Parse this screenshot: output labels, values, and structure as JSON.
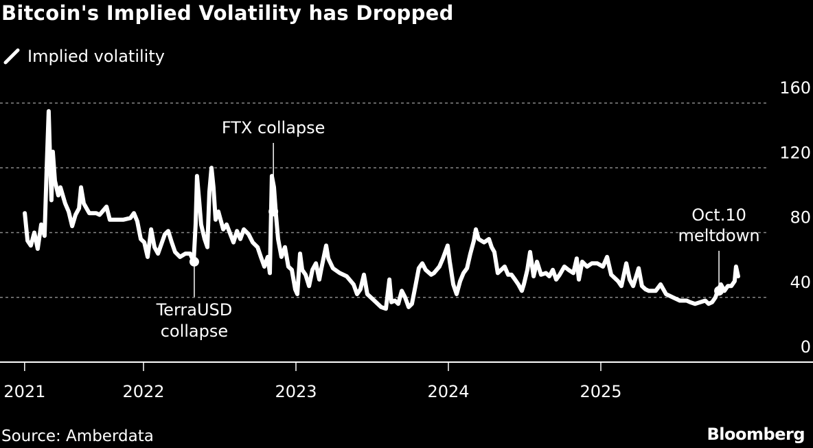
{
  "title": "Bitcoin's Implied Volatility has Dropped",
  "legend": [
    {
      "label": "Implied volatility",
      "icon": "slash-line-icon",
      "color": "#ffffff"
    }
  ],
  "source": "Source: Amberdata",
  "logo": "Bloomberg",
  "colors": {
    "background": "#000000",
    "line": "#ffffff",
    "grid": "#888888"
  },
  "chart_data": {
    "type": "line",
    "title": "Bitcoin's Implied Volatility has Dropped",
    "xlabel": "",
    "ylabel": "",
    "x_unit": "year (decimal)",
    "xlim": [
      2021.22,
      2025.95
    ],
    "ylim": [
      0,
      160
    ],
    "y_ticks": [
      0,
      40,
      80,
      120,
      160
    ],
    "x_ticks": [
      {
        "label": "2021",
        "value": 2021
      },
      {
        "label": "2022",
        "value": 2022
      },
      {
        "label": "2023",
        "value": 2023
      },
      {
        "label": "2024",
        "value": 2024
      },
      {
        "label": "2025",
        "value": 2025
      }
    ],
    "grid": "horizontal dashed",
    "y_axis_side": "right",
    "legend_placement": "top-left",
    "series": [
      {
        "name": "Implied volatility",
        "points": [
          [
            2021.221,
            92
          ],
          [
            2021.239,
            75
          ],
          [
            2021.261,
            72
          ],
          [
            2021.284,
            80
          ],
          [
            2021.306,
            70
          ],
          [
            2021.329,
            85
          ],
          [
            2021.351,
            78
          ],
          [
            2021.365,
            120
          ],
          [
            2021.378,
            155
          ],
          [
            2021.387,
            125
          ],
          [
            2021.396,
            100
          ],
          [
            2021.405,
            130
          ],
          [
            2021.419,
            112
          ],
          [
            2021.441,
            103
          ],
          [
            2021.455,
            108
          ],
          [
            2021.486,
            98
          ],
          [
            2021.509,
            93
          ],
          [
            2021.532,
            84
          ],
          [
            2021.554,
            91
          ],
          [
            2021.577,
            95
          ],
          [
            2021.59,
            108
          ],
          [
            2021.608,
            98
          ],
          [
            2021.644,
            92
          ],
          [
            2021.689,
            92
          ],
          [
            2021.712,
            91
          ],
          [
            2021.757,
            96
          ],
          [
            2021.779,
            88
          ],
          [
            2021.824,
            88
          ],
          [
            2021.869,
            88
          ],
          [
            2021.914,
            89
          ],
          [
            2021.937,
            92
          ],
          [
            2021.959,
            87
          ],
          [
            2021.982,
            76
          ],
          [
            2022.005,
            74
          ],
          [
            2022.027,
            65
          ],
          [
            2022.05,
            82
          ],
          [
            2022.072,
            71
          ],
          [
            2022.095,
            67
          ],
          [
            2022.14,
            79
          ],
          [
            2022.162,
            81
          ],
          [
            2022.185,
            74
          ],
          [
            2022.207,
            68
          ],
          [
            2022.239,
            65
          ],
          [
            2022.275,
            67
          ],
          [
            2022.306,
            67
          ],
          [
            2022.329,
            62
          ],
          [
            2022.342,
            85
          ],
          [
            2022.351,
            115
          ],
          [
            2022.365,
            100
          ],
          [
            2022.378,
            85
          ],
          [
            2022.401,
            76
          ],
          [
            2022.419,
            71
          ],
          [
            2022.432,
            105
          ],
          [
            2022.446,
            120
          ],
          [
            2022.459,
            108
          ],
          [
            2022.473,
            88
          ],
          [
            2022.491,
            93
          ],
          [
            2022.523,
            82
          ],
          [
            2022.545,
            85
          ],
          [
            2022.59,
            74
          ],
          [
            2022.613,
            81
          ],
          [
            2022.635,
            76
          ],
          [
            2022.658,
            82
          ],
          [
            2022.689,
            79
          ],
          [
            2022.716,
            74
          ],
          [
            2022.748,
            71
          ],
          [
            2022.77,
            65
          ],
          [
            2022.793,
            59
          ],
          [
            2022.815,
            65
          ],
          [
            2022.829,
            55
          ],
          [
            2022.842,
            115
          ],
          [
            2022.856,
            108
          ],
          [
            2022.869,
            91
          ],
          [
            2022.883,
            76
          ],
          [
            2022.905,
            65
          ],
          [
            2022.928,
            71
          ],
          [
            2022.95,
            59
          ],
          [
            2022.973,
            57
          ],
          [
            2022.995,
            45
          ],
          [
            2023.009,
            42
          ],
          [
            2023.027,
            67
          ],
          [
            2023.041,
            57
          ],
          [
            2023.063,
            54
          ],
          [
            2023.086,
            47
          ],
          [
            2023.108,
            57
          ],
          [
            2023.131,
            61
          ],
          [
            2023.153,
            51
          ],
          [
            2023.167,
            58
          ],
          [
            2023.198,
            72
          ],
          [
            2023.212,
            64
          ],
          [
            2023.243,
            58
          ],
          [
            2023.288,
            55
          ],
          [
            2023.333,
            53
          ],
          [
            2023.378,
            48
          ],
          [
            2023.401,
            42
          ],
          [
            2023.423,
            45
          ],
          [
            2023.446,
            54
          ],
          [
            2023.468,
            42
          ],
          [
            2023.514,
            38
          ],
          [
            2023.559,
            34
          ],
          [
            2023.59,
            33
          ],
          [
            2023.613,
            51
          ],
          [
            2023.626,
            37
          ],
          [
            2023.649,
            38
          ],
          [
            2023.671,
            36
          ],
          [
            2023.694,
            44
          ],
          [
            2023.716,
            40
          ],
          [
            2023.739,
            34
          ],
          [
            2023.761,
            36
          ],
          [
            2023.784,
            47
          ],
          [
            2023.806,
            58
          ],
          [
            2023.829,
            61
          ],
          [
            2023.851,
            57
          ],
          [
            2023.887,
            54
          ],
          [
            2023.905,
            55
          ],
          [
            2023.941,
            59
          ],
          [
            2023.964,
            64
          ],
          [
            2023.995,
            72
          ],
          [
            2024.009,
            62
          ],
          [
            2024.032,
            48
          ],
          [
            2024.054,
            42
          ],
          [
            2024.077,
            50
          ],
          [
            2024.099,
            55
          ],
          [
            2024.122,
            58
          ],
          [
            2024.144,
            67
          ],
          [
            2024.167,
            75
          ],
          [
            2024.18,
            82
          ],
          [
            2024.198,
            76
          ],
          [
            2024.234,
            74
          ],
          [
            2024.266,
            76
          ],
          [
            2024.284,
            71
          ],
          [
            2024.302,
            68
          ],
          [
            2024.324,
            55
          ],
          [
            2024.347,
            57
          ],
          [
            2024.369,
            59
          ],
          [
            2024.392,
            54
          ],
          [
            2024.414,
            54
          ],
          [
            2024.437,
            51
          ],
          [
            2024.459,
            48
          ],
          [
            2024.482,
            44
          ],
          [
            2024.495,
            48
          ],
          [
            2024.518,
            57
          ],
          [
            2024.536,
            68
          ],
          [
            2024.559,
            53
          ],
          [
            2024.581,
            62
          ],
          [
            2024.608,
            54
          ],
          [
            2024.64,
            55
          ],
          [
            2024.662,
            53
          ],
          [
            2024.685,
            57
          ],
          [
            2024.707,
            51
          ],
          [
            2024.73,
            54
          ],
          [
            2024.761,
            59
          ],
          [
            2024.788,
            57
          ],
          [
            2024.82,
            55
          ],
          [
            2024.842,
            64
          ],
          [
            2024.856,
            51
          ],
          [
            2024.878,
            62
          ],
          [
            2024.91,
            59
          ],
          [
            2024.941,
            61
          ],
          [
            2024.977,
            61
          ],
          [
            2025.014,
            59
          ],
          [
            2025.041,
            65
          ],
          [
            2025.068,
            54
          ],
          [
            2025.113,
            50
          ],
          [
            2025.135,
            47
          ],
          [
            2025.167,
            61
          ],
          [
            2025.189,
            51
          ],
          [
            2025.212,
            47
          ],
          [
            2025.248,
            58
          ],
          [
            2025.27,
            47
          ],
          [
            2025.293,
            45
          ],
          [
            2025.315,
            44
          ],
          [
            2025.36,
            44
          ],
          [
            2025.392,
            48
          ],
          [
            2025.428,
            42
          ],
          [
            2025.473,
            40
          ],
          [
            2025.518,
            38
          ],
          [
            2025.563,
            38
          ],
          [
            2025.586,
            37
          ],
          [
            2025.617,
            36
          ],
          [
            2025.653,
            37
          ],
          [
            2025.685,
            38
          ],
          [
            2025.707,
            36
          ],
          [
            2025.73,
            37
          ],
          [
            2025.752,
            40
          ],
          [
            2025.766,
            44
          ],
          [
            2025.788,
            48
          ],
          [
            2025.811,
            44
          ],
          [
            2025.833,
            47
          ],
          [
            2025.856,
            47
          ],
          [
            2025.878,
            50
          ],
          [
            2025.887,
            59
          ],
          [
            2025.901,
            53
          ]
        ]
      }
    ],
    "annotations": [
      {
        "lines": [
          "FTX collapse"
        ],
        "x": 2022.852,
        "y": 93,
        "label_position": "above"
      },
      {
        "lines": [
          "TerraUSD",
          "collapse"
        ],
        "x": 2022.333,
        "y": 62,
        "label_position": "below"
      },
      {
        "lines": [
          "Oct.10",
          "meltdown"
        ],
        "x": 2025.775,
        "y": 44,
        "label_position": "above"
      }
    ]
  }
}
